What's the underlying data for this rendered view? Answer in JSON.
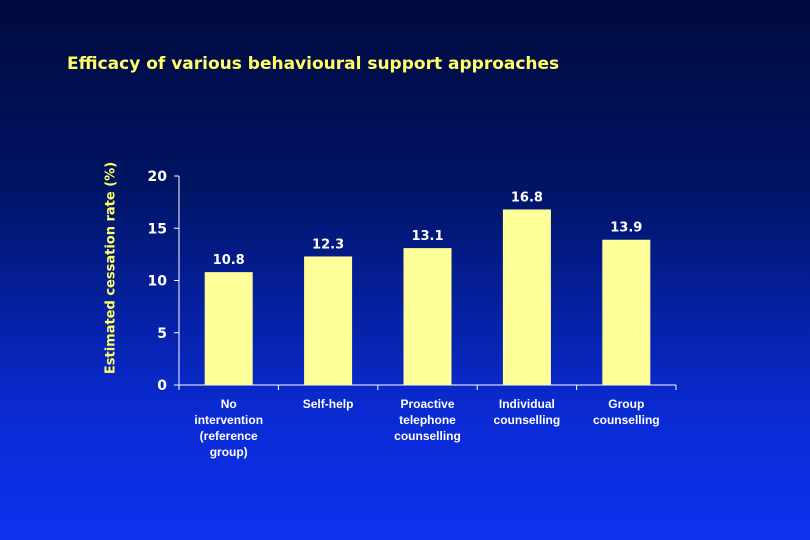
{
  "colors": {
    "bar_fill": "#ffff99",
    "axis": "#ffffff",
    "title": "#ffff66",
    "text": "#ffffff"
  },
  "chart_data": {
    "type": "bar",
    "title": "Efficacy of various behavioural support approaches",
    "xlabel": "",
    "ylabel": "Estimated cessation rate (%)",
    "ylim": [
      0,
      20
    ],
    "yticks": [
      0,
      5,
      10,
      15,
      20
    ],
    "grid": false,
    "categories": [
      [
        "No",
        "intervention",
        "(reference",
        "group)"
      ],
      [
        "Self-help"
      ],
      [
        "Proactive",
        "telephone",
        "counselling"
      ],
      [
        "Individual",
        "counselling"
      ],
      [
        "Group",
        "counselling"
      ]
    ],
    "values": [
      10.8,
      12.3,
      13.1,
      16.8,
      13.9
    ],
    "data_labels": [
      "10.8",
      "12.3",
      "13.1",
      "16.8",
      "13.9"
    ]
  }
}
